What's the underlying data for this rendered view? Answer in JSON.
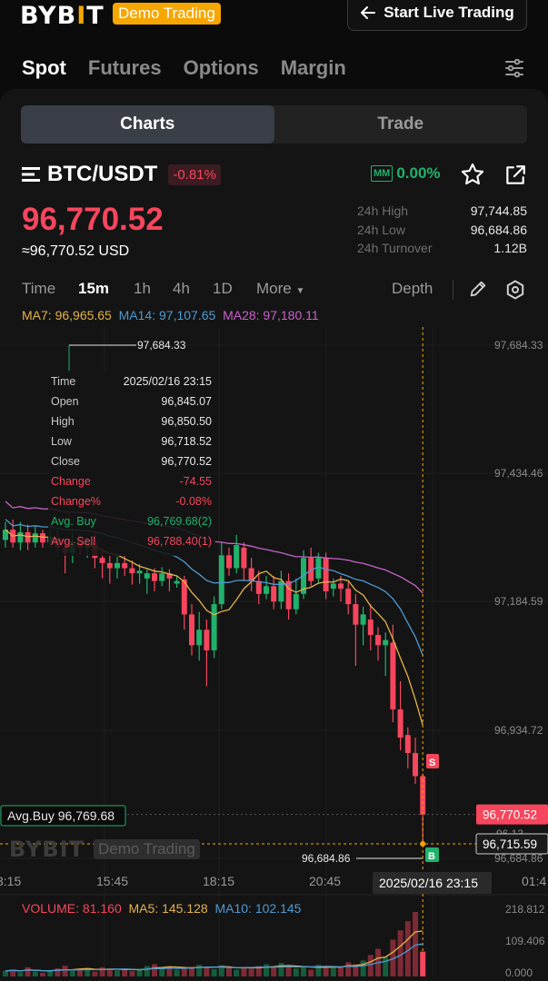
{
  "topbar": {
    "logo_text": "BYB",
    "logo_mark": "I",
    "logo_end": "T",
    "demo_label": "Demo Trading",
    "live_button_label": "Start Live Trading"
  },
  "main_tabs": [
    "Spot",
    "Futures",
    "Options",
    "Margin"
  ],
  "segment": {
    "left": "Charts",
    "right": "Trade",
    "active": "Charts"
  },
  "pair": {
    "symbol": "BTC/USDT",
    "change_pct": "-0.81%",
    "mm_label": "MM",
    "mm_value": "0.00%"
  },
  "price": {
    "last": "96,770.52",
    "usd": "≈96,770.52 USD"
  },
  "stats": [
    {
      "label": "24h High",
      "value": "97,744.85"
    },
    {
      "label": "24h Low",
      "value": "96,684.86"
    },
    {
      "label": "24h Turnover",
      "value": "1.12B"
    }
  ],
  "timeframes": [
    "Time",
    "15m",
    "1h",
    "4h",
    "1D",
    "More"
  ],
  "active_timeframe": "15m",
  "depth_label": "Depth",
  "ma": {
    "ma7": "MA7: 96,965.65",
    "ma14": "MA14: 97,107.65",
    "ma28": "MA28: 97,180.11"
  },
  "tooltip": [
    {
      "label": "Time",
      "value": "2025/02/16 23:15",
      "color": ""
    },
    {
      "label": "Open",
      "value": "96,845.07",
      "color": ""
    },
    {
      "label": "High",
      "value": "96,850.50",
      "color": ""
    },
    {
      "label": "Low",
      "value": "96,718.52",
      "color": ""
    },
    {
      "label": "Close",
      "value": "96,770.52",
      "color": ""
    },
    {
      "label": "Change",
      "value": "-74.55",
      "color": "red"
    },
    {
      "label": "Change%",
      "value": "-0.08%",
      "color": "red"
    },
    {
      "label": "Avg. Buy",
      "value": "96,769.68(2)",
      "color": "green"
    },
    {
      "label": "Avg. Sell",
      "value": "96,788.40(1)",
      "color": "red"
    }
  ],
  "chart_data": {
    "type": "candlestick",
    "interval": "15m",
    "ylim": [
      96684.86,
      97684.33
    ],
    "y_ticks": [
      "97,684.33",
      "97,434.46",
      "97,184.59",
      "96,934.72",
      "96,684.86"
    ],
    "x_ticks": [
      "3:15",
      "15:45",
      "18:15",
      "20:45",
      "01:4"
    ],
    "max_marker": "97,684.33",
    "min_marker": "96,684.86",
    "last_price_label": "96,770.52",
    "crosshair_price_label": "96,715.59",
    "partially_hidden_label": "96,13",
    "crosshair_time_label": "2025/02/16 23:15",
    "avg_buy_label": "Avg.Buy 96,769.68",
    "sell_marker": "S",
    "buy_marker": "B",
    "candles": [
      {
        "o": 97305,
        "c": 97325,
        "h": 97340,
        "l": 97290
      },
      {
        "o": 97325,
        "c": 97300,
        "h": 97345,
        "l": 97290
      },
      {
        "o": 97300,
        "c": 97320,
        "h": 97340,
        "l": 97285
      },
      {
        "o": 97320,
        "c": 97300,
        "h": 97335,
        "l": 97285
      },
      {
        "o": 97300,
        "c": 97318,
        "h": 97332,
        "l": 97290
      },
      {
        "o": 97318,
        "c": 97300,
        "h": 97325,
        "l": 97290
      },
      {
        "o": 97300,
        "c": 97310,
        "h": 97325,
        "l": 97290
      },
      {
        "o": 97310,
        "c": 97290,
        "h": 97330,
        "l": 97280
      },
      {
        "o": 97290,
        "c": 97280,
        "h": 97305,
        "l": 97240
      },
      {
        "o": 97280,
        "c": 97302,
        "h": 97320,
        "l": 97260
      },
      {
        "o": 97302,
        "c": 97290,
        "h": 97315,
        "l": 97275
      },
      {
        "o": 97290,
        "c": 97300,
        "h": 97310,
        "l": 97270
      },
      {
        "o": 97300,
        "c": 97270,
        "h": 97320,
        "l": 97250
      },
      {
        "o": 97270,
        "c": 97260,
        "h": 97290,
        "l": 97230
      },
      {
        "o": 97260,
        "c": 97250,
        "h": 97275,
        "l": 97220
      },
      {
        "o": 97250,
        "c": 97260,
        "h": 97272,
        "l": 97230
      },
      {
        "o": 97260,
        "c": 97250,
        "h": 97275,
        "l": 97235
      },
      {
        "o": 97250,
        "c": 97240,
        "h": 97265,
        "l": 97218
      },
      {
        "o": 97240,
        "c": 97245,
        "h": 97258,
        "l": 97220
      },
      {
        "o": 97230,
        "c": 97240,
        "h": 97250,
        "l": 97200
      },
      {
        "o": 97240,
        "c": 97225,
        "h": 97250,
        "l": 97205
      },
      {
        "o": 97225,
        "c": 97240,
        "h": 97252,
        "l": 97215
      },
      {
        "o": 97240,
        "c": 97230,
        "h": 97248,
        "l": 97205
      },
      {
        "o": 97220,
        "c": 97225,
        "h": 97235,
        "l": 97212
      },
      {
        "o": 97228,
        "c": 97160,
        "h": 97235,
        "l": 97130
      },
      {
        "o": 97160,
        "c": 97100,
        "h": 97180,
        "l": 97080
      },
      {
        "o": 97100,
        "c": 97130,
        "h": 97165,
        "l": 97070
      },
      {
        "o": 97130,
        "c": 97090,
        "h": 97150,
        "l": 97020
      },
      {
        "o": 97090,
        "c": 97180,
        "h": 97195,
        "l": 97075
      },
      {
        "o": 97180,
        "c": 97275,
        "h": 97300,
        "l": 97170
      },
      {
        "o": 97275,
        "c": 97250,
        "h": 97290,
        "l": 97235
      },
      {
        "o": 97250,
        "c": 97295,
        "h": 97315,
        "l": 97240
      },
      {
        "o": 97290,
        "c": 97250,
        "h": 97300,
        "l": 97225
      },
      {
        "o": 97250,
        "c": 97225,
        "h": 97270,
        "l": 97205
      },
      {
        "o": 97225,
        "c": 97200,
        "h": 97245,
        "l": 97180
      },
      {
        "o": 97200,
        "c": 97215,
        "h": 97235,
        "l": 97190
      },
      {
        "o": 97215,
        "c": 97185,
        "h": 97235,
        "l": 97170
      },
      {
        "o": 97185,
        "c": 97225,
        "h": 97245,
        "l": 97170
      },
      {
        "o": 97225,
        "c": 97170,
        "h": 97240,
        "l": 97150
      },
      {
        "o": 97170,
        "c": 97200,
        "h": 97230,
        "l": 97160
      },
      {
        "o": 97200,
        "c": 97270,
        "h": 97285,
        "l": 97190
      },
      {
        "o": 97270,
        "c": 97225,
        "h": 97290,
        "l": 97215
      },
      {
        "o": 97230,
        "c": 97270,
        "h": 97280,
        "l": 97220
      },
      {
        "o": 97270,
        "c": 97205,
        "h": 97280,
        "l": 97190
      },
      {
        "o": 97210,
        "c": 97220,
        "h": 97230,
        "l": 97195
      },
      {
        "o": 97220,
        "c": 97210,
        "h": 97235,
        "l": 97185
      },
      {
        "o": 97210,
        "c": 97180,
        "h": 97225,
        "l": 97160
      },
      {
        "o": 97180,
        "c": 97140,
        "h": 97200,
        "l": 97060
      },
      {
        "o": 97140,
        "c": 97160,
        "h": 97175,
        "l": 97100
      },
      {
        "o": 97150,
        "c": 97120,
        "h": 97180,
        "l": 97090
      },
      {
        "o": 97120,
        "c": 97100,
        "h": 97135,
        "l": 97070
      },
      {
        "o": 97100,
        "c": 97110,
        "h": 97125,
        "l": 97040
      },
      {
        "o": 97105,
        "c": 96975,
        "h": 97140,
        "l": 96950
      },
      {
        "o": 96975,
        "c": 96920,
        "h": 97030,
        "l": 96895
      },
      {
        "o": 96925,
        "c": 96890,
        "h": 96940,
        "l": 96860
      },
      {
        "o": 96890,
        "c": 96845,
        "h": 96920,
        "l": 96830
      },
      {
        "o": 96845,
        "c": 96770,
        "h": 96850,
        "l": 96718
      }
    ],
    "volume": {
      "legend": {
        "volume": "VOLUME: 81.160",
        "ma5": "MA5: 145.128",
        "ma10": "MA10: 102.145"
      },
      "ticks": [
        "218.812",
        "109.406",
        "0.000"
      ],
      "ymax": 218.812,
      "bars": [
        18,
        22,
        14,
        30,
        16,
        12,
        20,
        26,
        35,
        18,
        22,
        28,
        16,
        30,
        24,
        20,
        22,
        18,
        25,
        34,
        40,
        28,
        30,
        22,
        26,
        32,
        38,
        30,
        24,
        36,
        28,
        22,
        30,
        26,
        34,
        40,
        28,
        44,
        32,
        26,
        30,
        22,
        38,
        34,
        28,
        30,
        46,
        40,
        52,
        70,
        90,
        64,
        120,
        150,
        180,
        210,
        81
      ]
    }
  }
}
